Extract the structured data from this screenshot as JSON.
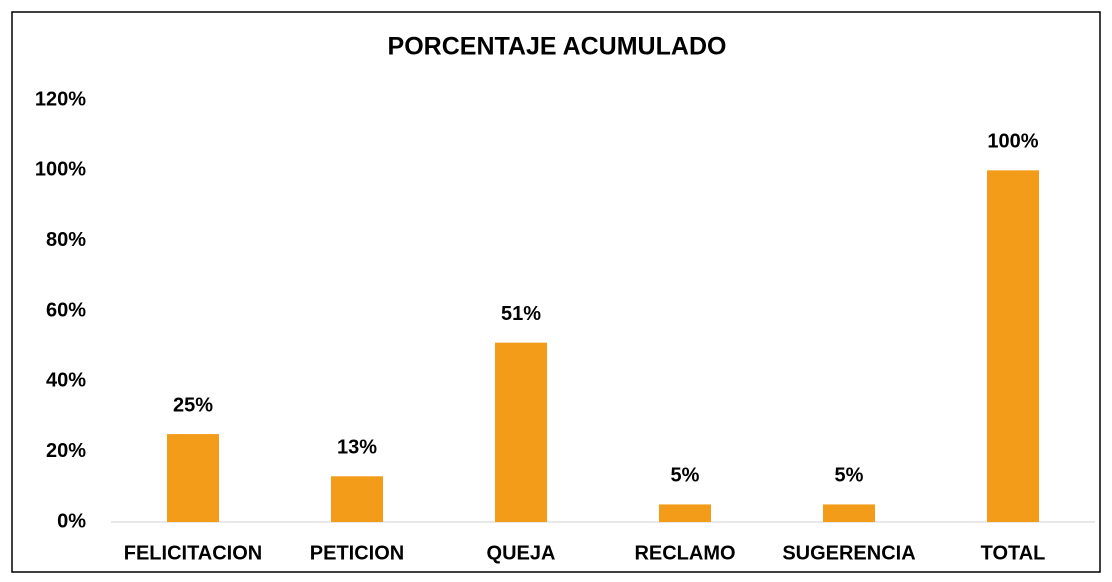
{
  "chart_data": {
    "type": "bar",
    "title": "PORCENTAJE ACUMULADO",
    "categories": [
      "FELICITACION",
      "PETICION",
      "QUEJA",
      "RECLAMO",
      "SUGERENCIA",
      "TOTAL"
    ],
    "values": [
      25,
      13,
      51,
      5,
      5,
      100
    ],
    "value_labels": [
      "25%",
      "13%",
      "51%",
      "5%",
      "5%",
      "100%"
    ],
    "color": "#f39c1a",
    "ylim": [
      0,
      120
    ],
    "yticks": [
      {
        "value": 0,
        "label": "0%"
      },
      {
        "value": 20,
        "label": "20%"
      },
      {
        "value": 40,
        "label": "40%"
      },
      {
        "value": 60,
        "label": "60%"
      },
      {
        "value": 80,
        "label": "80%"
      },
      {
        "value": 100,
        "label": "100%"
      },
      {
        "value": 120,
        "label": "120%"
      }
    ],
    "grid": false
  }
}
